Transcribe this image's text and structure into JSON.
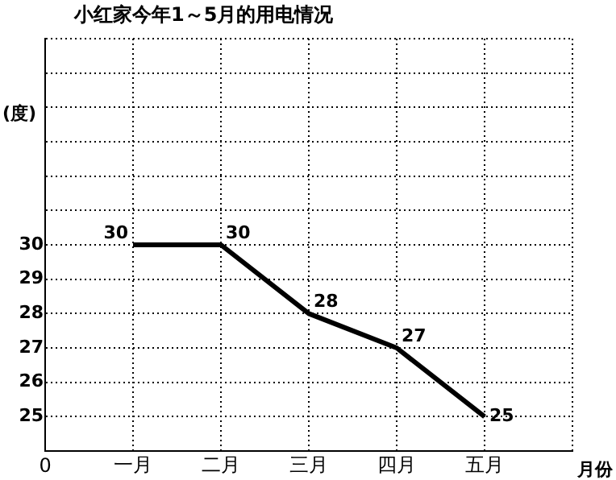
{
  "chart_data": {
    "type": "line",
    "title": "小红家今年1～5月的用电情况",
    "xlabel": "月份",
    "ylabel": "(度)",
    "annotations": [
      "0"
    ],
    "categories": [
      null,
      "一月",
      "二月",
      "三月",
      "四月",
      "五月",
      null
    ],
    "series": [
      {
        "color": "#000000",
        "values": [
          null,
          30,
          30,
          28,
          27,
          25,
          null
        ]
      }
    ],
    "ylim": [
      24,
      36
    ],
    "yticks": [
      {
        "value": 24,
        "label": null
      },
      25,
      26,
      27,
      28,
      29,
      30,
      {
        "value": 31,
        "label": null
      },
      {
        "value": 32,
        "label": null
      },
      {
        "value": 33,
        "label": null
      },
      {
        "value": 34,
        "label": null
      },
      {
        "value": 35,
        "label": null
      },
      {
        "value": 36,
        "label": null
      }
    ],
    "grid": true,
    "legend": false,
    "marker": "none",
    "line_style": "solid",
    "data_labels": true
  }
}
